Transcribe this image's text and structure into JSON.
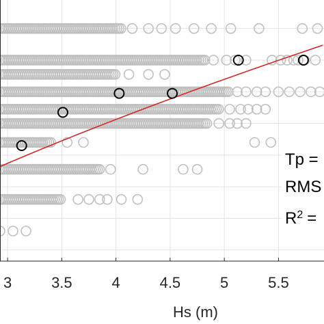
{
  "chart_data": {
    "type": "scatter",
    "xlabel": "Hs (m)",
    "ylabel": "",
    "xlim": [
      2.93,
      5.92
    ],
    "ylim": [
      3.65,
      11.9
    ],
    "grid": true,
    "x_ticks": [
      "3",
      "3.5",
      "4",
      "4.5",
      "5",
      "5.5"
    ],
    "annotation_lines": [
      "Tp =",
      "RMS",
      "R",
      "2",
      "="
    ],
    "series": [
      {
        "name": "",
        "style": "gray-circles",
        "bands": [
          {
            "y": 11.0,
            "x_start": 2.93,
            "x_end": 4.05,
            "points": [
              4.15,
              4.3,
              4.42,
              4.55,
              4.72,
              4.88,
              5.06,
              5.32,
              5.72,
              5.86
            ]
          },
          {
            "y": 10.0,
            "x_start": 2.93,
            "x_end": 4.82,
            "points": [
              4.9,
              5.02,
              5.1,
              5.2,
              5.44,
              5.52,
              5.58,
              5.64,
              5.68,
              5.74,
              5.84
            ]
          },
          {
            "y": 9.55,
            "x_start": 2.93,
            "x_end": 4.0,
            "points": [
              4.12,
              4.3,
              4.45
            ]
          },
          {
            "y": 9.0,
            "x_start": 2.93,
            "x_end": 5.05,
            "points": [
              5.12,
              5.2,
              5.3,
              5.38,
              5.5,
              5.6,
              5.7,
              5.8,
              5.88
            ]
          },
          {
            "y": 8.45,
            "x_start": 2.93,
            "x_end": 4.95,
            "points": [
              5.05,
              5.15,
              5.22,
              5.3,
              5.38
            ]
          },
          {
            "y": 8.0,
            "x_start": 2.93,
            "x_end": 4.85,
            "points": [
              4.95,
              5.05,
              5.12,
              5.2
            ]
          },
          {
            "y": 7.4,
            "x_start": 2.93,
            "x_end": 3.4,
            "points": [
              3.55,
              3.7,
              5.28,
              5.43
            ]
          },
          {
            "y": 6.55,
            "x_start": 2.93,
            "x_end": 3.85,
            "points": [
              3.95,
              4.25,
              4.62,
              4.75
            ]
          },
          {
            "y": 5.6,
            "x_start": 2.93,
            "x_end": 3.5,
            "points": [
              3.65,
              3.75,
              3.85,
              3.92,
              4.05,
              4.2
            ]
          },
          {
            "y": 4.6,
            "x_start": 2.93,
            "x_end": 2.93,
            "points": [
              3.05,
              3.17
            ]
          }
        ]
      },
      {
        "name": "",
        "style": "black-circles",
        "points": [
          {
            "x": 3.13,
            "y": 7.3
          },
          {
            "x": 3.51,
            "y": 8.35
          },
          {
            "x": 4.03,
            "y": 8.95
          },
          {
            "x": 4.52,
            "y": 8.95
          },
          {
            "x": 5.13,
            "y": 10.0
          },
          {
            "x": 5.73,
            "y": 10.0
          }
        ]
      },
      {
        "name": "",
        "style": "red-line",
        "fit": {
          "form": "power",
          "a": 3.3,
          "b": 0.65
        }
      }
    ]
  },
  "colors": {
    "gray_marker": "#c0c0c0",
    "mean_marker": "#000000",
    "fit_line": "#d62728",
    "grid": "#e3e3e3",
    "axis": "#262626"
  }
}
